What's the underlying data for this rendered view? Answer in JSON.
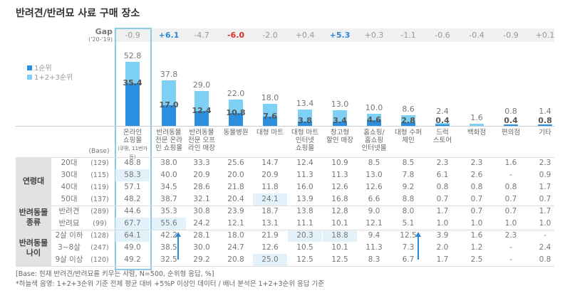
{
  "title": "반려견/반려묘 사료 구매 장소",
  "gap_label": "Gap",
  "gap_period": "('20-'19)",
  "legend": [
    {
      "label": "1순위",
      "color": "#2b8fe0"
    },
    {
      "label": "1+2+3순위",
      "color": "#7fd0f5"
    }
  ],
  "colors": {
    "gap_positive": "#2b88d8",
    "gap_negative": "#e03030",
    "gap_neutral": "#999999",
    "highlight": "#e3f1fb",
    "outline": "#8ccbe8"
  },
  "chart_data": {
    "type": "bar",
    "categories": [
      "온라인 쇼핑몰",
      "반려동물 전문 온라인 쇼핑몰",
      "반려동물 전문 오프라인 매장",
      "동물병원",
      "대형 마트",
      "대형 마트 인터넷 쇼핑몰",
      "창고형 할인 매장",
      "홈쇼핑/ 홈쇼핑 인터넷몰",
      "대형 수퍼 체인",
      "드럭 스토어",
      "백화점",
      "편의점",
      "기타"
    ],
    "category_lines": [
      [
        "온라인",
        "쇼핑몰"
      ],
      [
        "반려동물",
        "전문 온라",
        "인 쇼핑몰"
      ],
      [
        "반려동물",
        "전문 오프",
        "라인 매장"
      ],
      [
        "동물병원"
      ],
      [
        "대형 마트"
      ],
      [
        "대형 마트",
        "인터넷",
        "쇼핑몰"
      ],
      [
        "창고형",
        "할인 매장"
      ],
      [
        "홈쇼핑/",
        "홈쇼핑",
        "인터넷몰"
      ],
      [
        "대형 수퍼",
        "체인"
      ],
      [
        "드럭",
        "스토어"
      ],
      [
        "백화점"
      ],
      [
        "편의점"
      ],
      [
        "기타"
      ]
    ],
    "category_note": "(쿠팡, 11번가 등)",
    "series": [
      {
        "name": "1순위",
        "values": [
          35.4,
          17.0,
          12.4,
          10.8,
          7.6,
          3.8,
          3.4,
          4.6,
          2.8,
          0.4,
          null,
          0.4,
          0.8
        ]
      },
      {
        "name": "1+2+3순위",
        "values": [
          52.8,
          37.8,
          29.0,
          22.0,
          18.0,
          13.4,
          13.0,
          10.0,
          8.6,
          2.4,
          1.6,
          0.8,
          1.4
        ]
      }
    ],
    "gap": [
      "-0.9",
      "+6.1",
      "-4.7",
      "-6.0",
      "-2.0",
      "+0.4",
      "+5.3",
      "+0.3",
      "-1.1",
      "-0.6",
      "-0.4",
      "-0.9",
      "+0.1"
    ],
    "gap_emphasis": [
      "",
      "positive",
      "",
      "negative",
      "",
      "",
      "positive",
      "",
      "",
      "",
      "",
      "",
      ""
    ],
    "ylim": [
      0,
      55
    ]
  },
  "table": {
    "base_header": "(Base)",
    "groups": [
      {
        "label": [
          "연령대"
        ],
        "rows": [
          0,
          1,
          2,
          3
        ]
      },
      {
        "label": [
          "반려동물",
          "종류"
        ],
        "rows": [
          4,
          5
        ]
      },
      {
        "label": [
          "반려동물",
          "나이"
        ],
        "rows": [
          6,
          7,
          8
        ]
      }
    ],
    "rows": [
      {
        "label": "20대",
        "base": "(129)",
        "values": [
          "48.8",
          "38.0",
          "33.3",
          "25.6",
          "14.7",
          "12.4",
          "10.9",
          "8.5",
          "8.5",
          "2.3",
          "2.3",
          "1.6",
          "2.3"
        ]
      },
      {
        "label": "30대",
        "base": "(115)",
        "values": [
          "58.3",
          "40.0",
          "20.9",
          "20.0",
          "20.9",
          "11.3",
          "11.3",
          "13.0",
          "7.8",
          "6.1",
          "2.6",
          "-",
          "0.9"
        ]
      },
      {
        "label": "40대",
        "base": "(119)",
        "values": [
          "57.1",
          "34.5",
          "28.6",
          "21.8",
          "11.8",
          "16.0",
          "12.6",
          "12.6",
          "9.2",
          "0.8",
          "0.8",
          "0.8",
          "1.7"
        ]
      },
      {
        "label": "50대",
        "base": "(137)",
        "values": [
          "48.2",
          "38.7",
          "32.1",
          "20.4",
          "24.1",
          "13.9",
          "16.8",
          "6.6",
          "8.8",
          "0.7",
          "0.7",
          "0.7",
          "0.7"
        ]
      },
      {
        "label": "반려견",
        "base": "(289)",
        "values": [
          "44.6",
          "35.3",
          "30.8",
          "23.9",
          "18.7",
          "13.8",
          "12.8",
          "9.0",
          "8.0",
          "1.7",
          "0.7",
          "0.7",
          "1.7"
        ]
      },
      {
        "label": "반려묘",
        "base": "(99)",
        "values": [
          "67.7",
          "55.6",
          "24.2",
          "12.1",
          "13.1",
          "11.1",
          "10.1",
          "12.1",
          "5.1",
          "1.0",
          "1.0",
          "1.0",
          "1.0"
        ]
      },
      {
        "label": "2살 이하",
        "base": "(128)",
        "values": [
          "64.1",
          "42.2",
          "28.1",
          "18.0",
          "21.9",
          "20.3",
          "18.8",
          "9.4",
          "12.5",
          "3.9",
          "1.6",
          "2.3",
          "-"
        ]
      },
      {
        "label": "3~8살",
        "base": "(247)",
        "values": [
          "49.0",
          "38.5",
          "30.0",
          "24.7",
          "12.6",
          "10.5",
          "10.1",
          "11.3",
          "7.3",
          "2.0",
          "1.2",
          "-",
          "2.4"
        ]
      },
      {
        "label": "9살 이상",
        "base": "(120)",
        "values": [
          "49.2",
          "32.5",
          "29.2",
          "20.8",
          "25.0",
          "12.5",
          "12.5",
          "8.3",
          "6.7",
          "1.7",
          "2.5",
          "-",
          "0.8"
        ]
      }
    ],
    "highlighted": [
      [
        1,
        0
      ],
      [
        5,
        0
      ],
      [
        6,
        0
      ],
      [
        5,
        1
      ],
      [
        3,
        4
      ],
      [
        8,
        4
      ],
      [
        6,
        5
      ],
      [
        6,
        6
      ]
    ]
  },
  "footnotes": [
    "[Base: 현재 반려견/반려묘를 키우는 사람, N=500, 순위형 응답, %]",
    "*하늘색 음영: 1+2+3순위 기준 전체 평균 대비 +5%P 이상인 데이터 / 배너 분석은 1+2+3순위 응답 기준"
  ]
}
